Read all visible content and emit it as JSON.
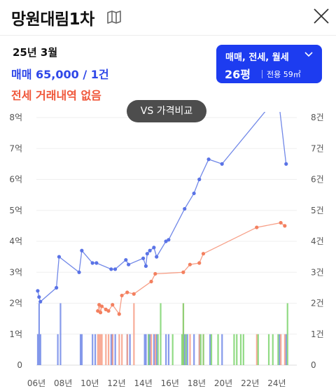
{
  "header": {
    "title": "망원대림1차",
    "map_icon": "map-icon",
    "close_icon": "close-icon"
  },
  "summary": {
    "date": "25년 3월",
    "sale_text": "매매 65,000 / 1건",
    "jeonse_text": "전세 거래내역 없음"
  },
  "selector": {
    "types": "매매, 전세, 월세",
    "size": "26평",
    "area": "전용 59㎡"
  },
  "compare_button": "VS 가격비교",
  "colors": {
    "sale": "#2f47e8",
    "sale_line": "#7188e8",
    "jeonse": "#f0573a",
    "jeonse_line": "#f79f87",
    "monthly": "#7ed56f",
    "selector_bg": "#1d3cf0"
  },
  "chart_data": {
    "type": "line",
    "x_range": [
      2006,
      2025.5
    ],
    "y_left": {
      "min": 0,
      "max": 8,
      "tick_labels": [
        "0",
        "1억",
        "2억",
        "3억",
        "4억",
        "5억",
        "6억",
        "7억",
        "8억"
      ]
    },
    "y_right": {
      "min": 0,
      "max": 8,
      "tick_labels": [
        "0",
        "1건",
        "2건",
        "3건",
        "4건",
        "5건",
        "6건",
        "7건",
        "8건"
      ]
    },
    "x_ticks": [
      2006,
      2008,
      2010,
      2012,
      2014,
      2016,
      2018,
      2020,
      2022,
      2024
    ],
    "x_tick_labels": [
      "06년",
      "08년",
      "10년",
      "12년",
      "14년",
      "16년",
      "18년",
      "20년",
      "22년",
      "24년"
    ],
    "grid": true,
    "series": [
      {
        "key": "sale",
        "points": [
          [
            2006.1,
            2.4
          ],
          [
            2006.2,
            2.2
          ],
          [
            2006.3,
            2.05
          ],
          [
            2007.5,
            2.5
          ],
          [
            2007.7,
            3.5
          ],
          [
            2009.2,
            3.0
          ],
          [
            2009.4,
            3.7
          ],
          [
            2010.2,
            3.3
          ],
          [
            2010.5,
            3.3
          ],
          [
            2011.6,
            3.1
          ],
          [
            2011.9,
            3.1
          ],
          [
            2012.7,
            3.4
          ],
          [
            2012.9,
            3.25
          ],
          [
            2014.0,
            3.45
          ],
          [
            2014.2,
            3.2
          ],
          [
            2014.3,
            3.6
          ],
          [
            2014.5,
            3.7
          ],
          [
            2014.8,
            3.8
          ],
          [
            2015.0,
            3.5
          ],
          [
            2015.7,
            4.0
          ],
          [
            2015.9,
            4.05
          ],
          [
            2017.1,
            5.05
          ],
          [
            2017.8,
            5.55
          ],
          [
            2018.2,
            6.0
          ],
          [
            2018.9,
            6.65
          ],
          [
            2019.9,
            6.5
          ],
          [
            2024.1,
            8.7
          ],
          [
            2024.7,
            6.5
          ]
        ]
      },
      {
        "key": "jeonse",
        "points": [
          [
            2010.6,
            1.75
          ],
          [
            2010.7,
            1.95
          ],
          [
            2010.8,
            1.7
          ],
          [
            2010.9,
            1.9
          ],
          [
            2011.2,
            1.8
          ],
          [
            2011.4,
            1.75
          ],
          [
            2011.7,
            1.95
          ],
          [
            2012.2,
            1.65
          ],
          [
            2012.4,
            2.25
          ],
          [
            2012.8,
            2.35
          ],
          [
            2013.3,
            2.3
          ],
          [
            2014.6,
            2.7
          ],
          [
            2014.9,
            2.95
          ],
          [
            2017.0,
            3.0
          ],
          [
            2017.5,
            3.25
          ],
          [
            2018.2,
            3.3
          ],
          [
            2018.5,
            3.6
          ],
          [
            2022.5,
            4.45
          ],
          [
            2024.3,
            4.6
          ],
          [
            2024.6,
            4.5
          ]
        ]
      }
    ],
    "volume_bars": {
      "sale": [
        2006.1,
        2006.2,
        2006.3,
        2007.6,
        2007.8,
        2009.3,
        2009.4,
        2010.2,
        2010.4,
        2011.6,
        2011.7,
        2011.9,
        2012.8,
        2013.0,
        2014.1,
        2014.2,
        2014.4,
        2014.5,
        2014.8,
        2015.0,
        2015.7,
        2015.9,
        2017.1,
        2017.3,
        2017.8,
        2018.2,
        2019.0,
        2019.9,
        2024.2,
        2024.7
      ],
      "sale_counts": [
        1,
        2,
        1,
        1,
        2,
        1,
        1,
        1,
        1,
        1,
        1,
        1,
        1,
        1,
        1,
        1,
        1,
        1,
        1,
        1,
        1,
        1,
        1,
        1,
        1,
        1,
        1,
        1,
        1,
        1
      ],
      "jeonse": [
        2010.6,
        2010.7,
        2010.8,
        2010.9,
        2011.2,
        2011.4,
        2011.7,
        2012.2,
        2012.4,
        2012.8,
        2013.3,
        2014.6,
        2014.9,
        2017.0,
        2017.5,
        2018.2,
        2018.5,
        2022.5,
        2024.3,
        2024.6
      ],
      "jeonse_counts": [
        1,
        1,
        1,
        1,
        1,
        1,
        1,
        1,
        1,
        1,
        2,
        1,
        1,
        2,
        1,
        1,
        1,
        1,
        1,
        1
      ],
      "monthly": [
        2014.4,
        2015.1,
        2015.3,
        2016.2,
        2016.9,
        2017.0,
        2017.2,
        2018.3,
        2018.5,
        2019.1,
        2019.6,
        2020.8,
        2021.0,
        2021.3,
        2021.5,
        2022.6,
        2023.4,
        2023.7,
        2024.1,
        2024.8
      ],
      "monthly_counts": [
        1,
        1,
        2,
        1,
        1,
        2,
        1,
        1,
        1,
        1,
        1,
        1,
        1,
        1,
        1,
        1,
        1,
        1,
        1,
        2
      ]
    }
  }
}
